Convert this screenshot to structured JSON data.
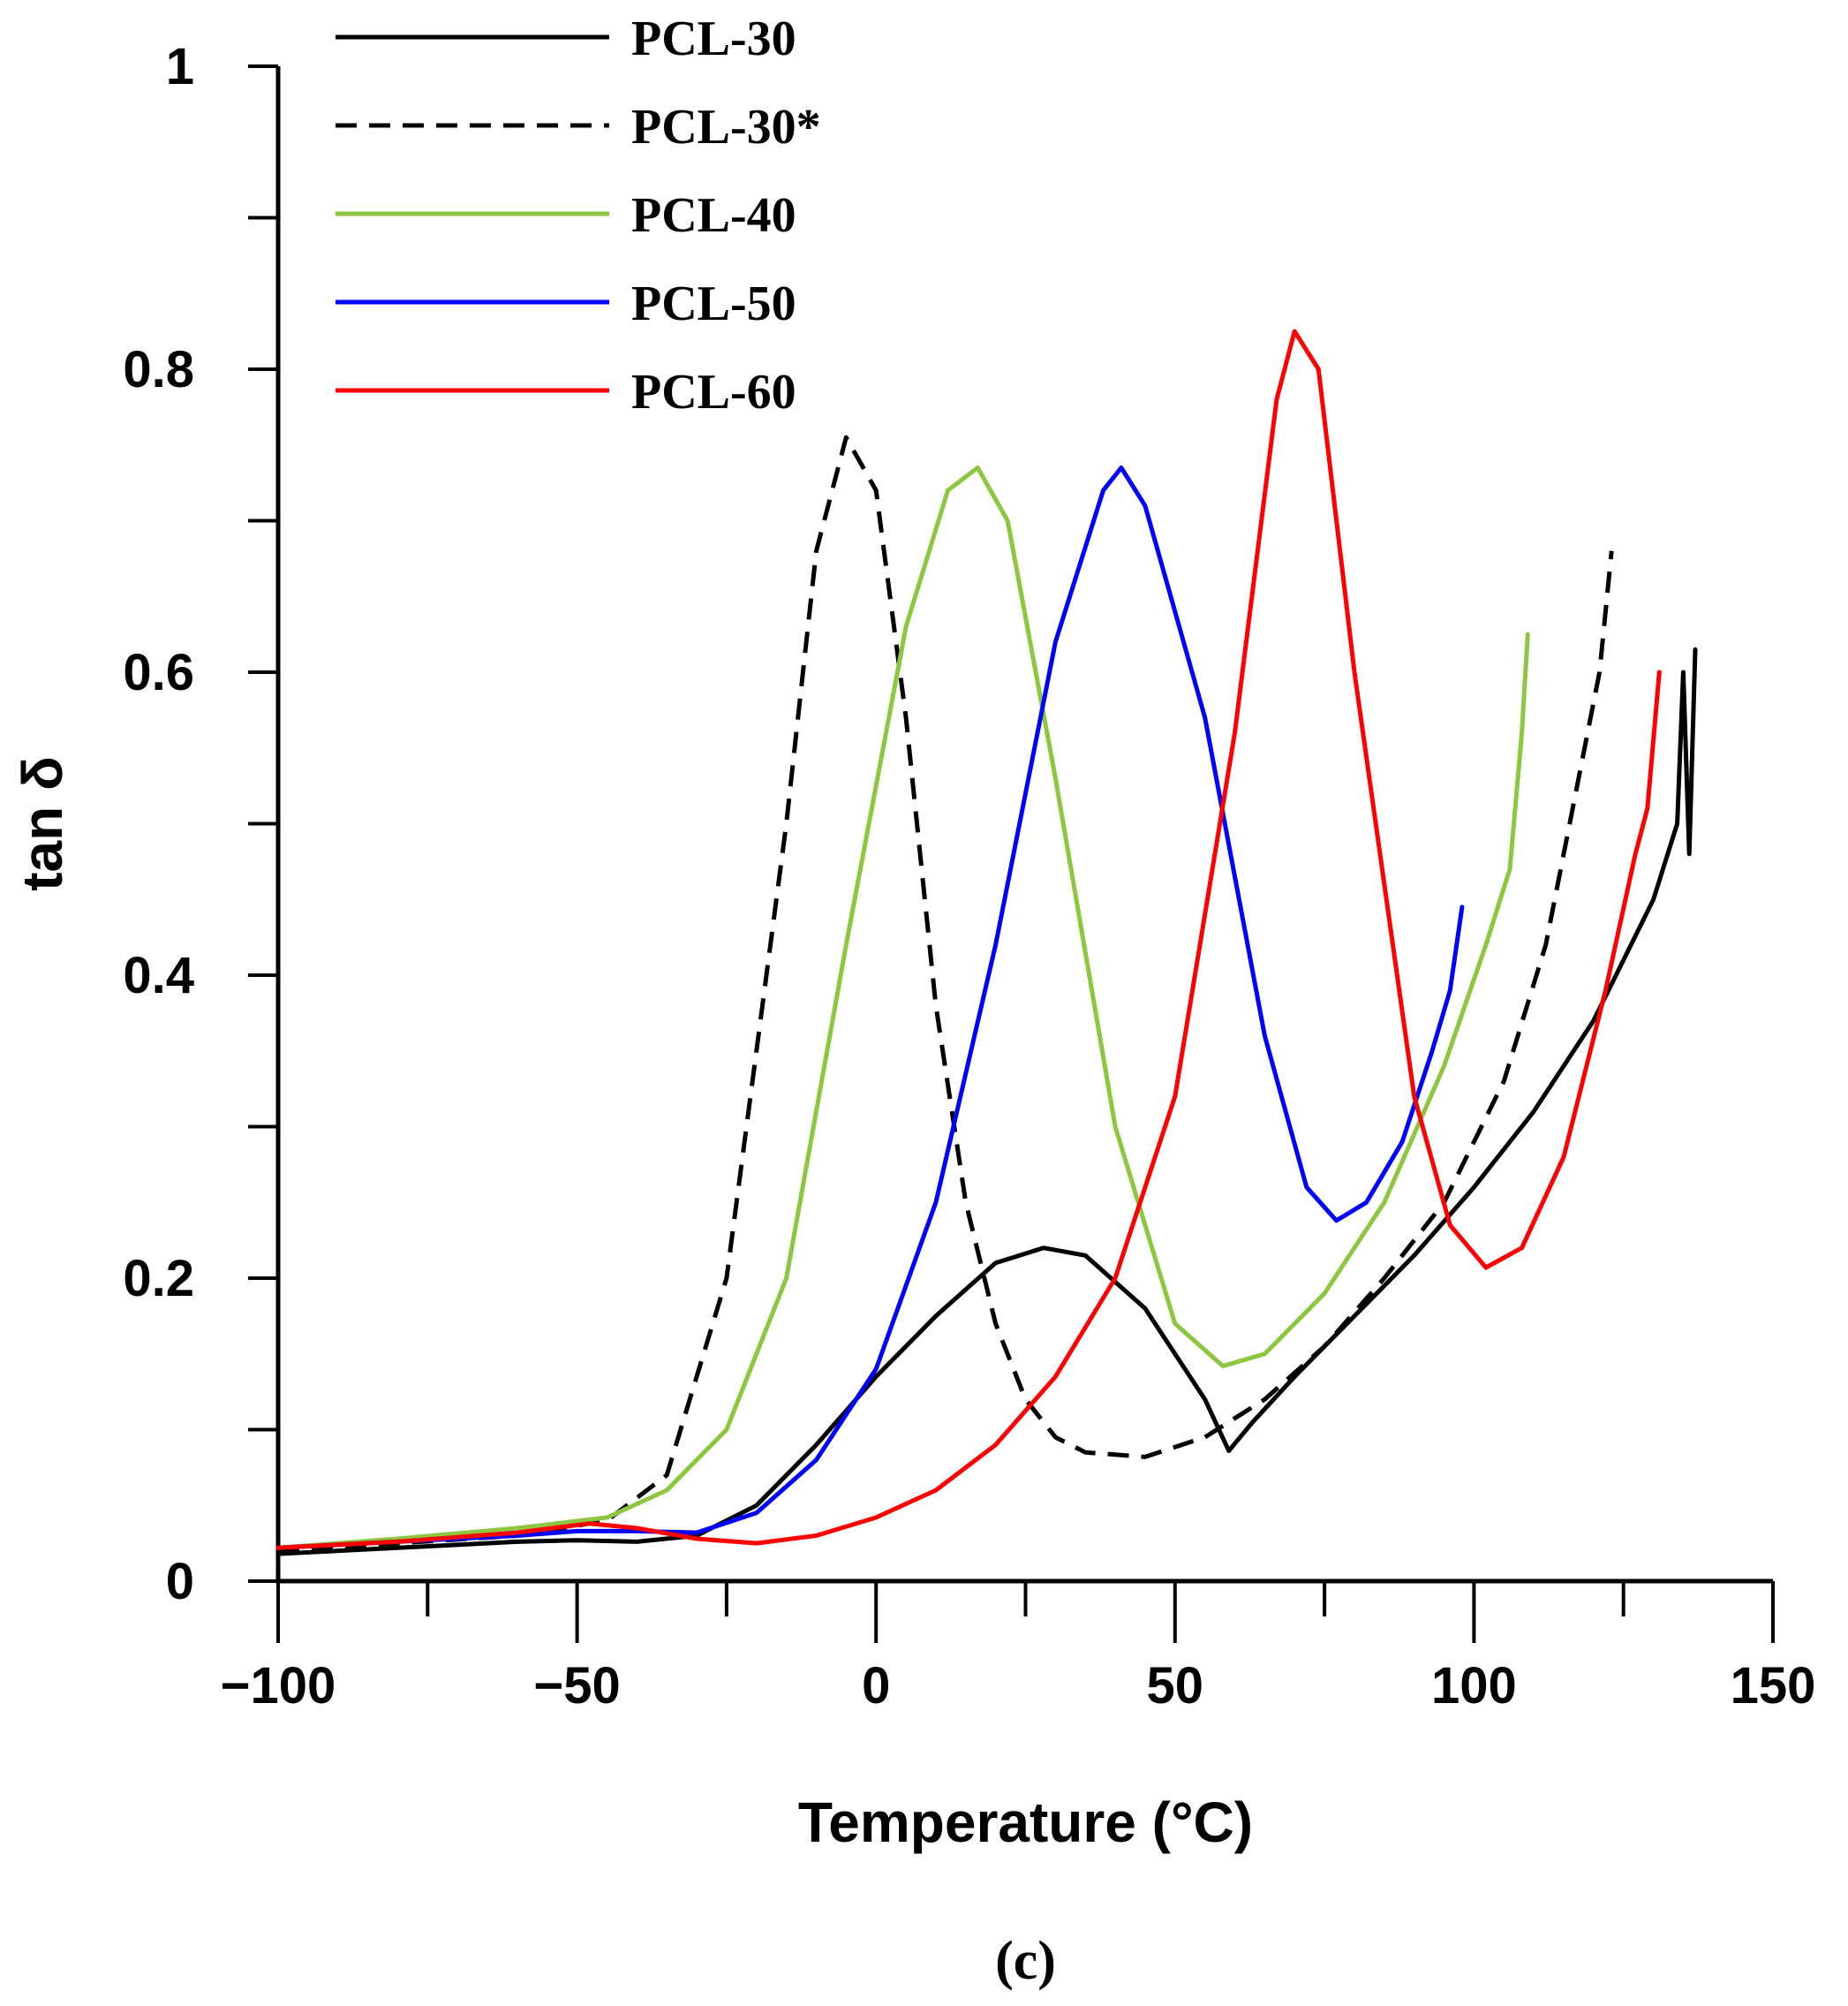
{
  "chart_data": {
    "type": "line",
    "title": "",
    "xlabel": "Temperature (°C)",
    "ylabel": "tan δ",
    "caption": "(c)",
    "xlim": [
      -100,
      150
    ],
    "ylim": [
      0,
      1
    ],
    "x_ticks": [
      -100,
      -50,
      0,
      50,
      100,
      150
    ],
    "x_tick_labels": [
      "−100",
      "−50",
      "0",
      "50",
      "100",
      "150"
    ],
    "y_ticks": [
      0,
      0.2,
      0.4,
      0.6,
      0.8,
      1
    ],
    "y_tick_labels": [
      "0",
      "0.2",
      "0.4",
      "0.6",
      "0.8",
      "1"
    ],
    "grid": false,
    "legend_position": "top-left",
    "series": [
      {
        "name": "PCL-30",
        "color": "#000000",
        "dashed": false,
        "x": [
          -100,
          -80,
          -60,
          -50,
          -40,
          -30,
          -20,
          -10,
          0,
          10,
          20,
          28,
          35,
          45,
          55,
          59,
          63,
          70,
          80,
          90,
          100,
          110,
          120,
          130,
          134,
          135,
          136,
          137
        ],
        "y": [
          0.018,
          0.022,
          0.026,
          0.027,
          0.026,
          0.03,
          0.05,
          0.09,
          0.135,
          0.175,
          0.21,
          0.22,
          0.215,
          0.18,
          0.12,
          0.086,
          0.105,
          0.135,
          0.175,
          0.215,
          0.26,
          0.31,
          0.37,
          0.45,
          0.5,
          0.6,
          0.48,
          0.615
        ]
      },
      {
        "name": "PCL-30*",
        "color": "#000000",
        "dashed": true,
        "x": [
          -100,
          -80,
          -60,
          -45,
          -35,
          -25,
          -15,
          -10,
          -5,
          0,
          5,
          10,
          15,
          20,
          25,
          30,
          35,
          45,
          55,
          65,
          75,
          85,
          95,
          105,
          112,
          118,
          121,
          123
        ],
        "y": [
          0.02,
          0.025,
          0.03,
          0.04,
          0.07,
          0.2,
          0.5,
          0.68,
          0.755,
          0.72,
          0.57,
          0.38,
          0.25,
          0.17,
          0.12,
          0.095,
          0.085,
          0.082,
          0.095,
          0.12,
          0.155,
          0.2,
          0.25,
          0.33,
          0.42,
          0.54,
          0.6,
          0.68
        ]
      },
      {
        "name": "PCL-40",
        "color": "#8dc63f",
        "dashed": false,
        "x": [
          -100,
          -80,
          -60,
          -45,
          -35,
          -25,
          -15,
          -5,
          5,
          12,
          17,
          22,
          30,
          40,
          50,
          58,
          65,
          75,
          85,
          95,
          102,
          106,
          108,
          109
        ],
        "y": [
          0.022,
          0.028,
          0.035,
          0.042,
          0.06,
          0.1,
          0.2,
          0.42,
          0.63,
          0.72,
          0.735,
          0.7,
          0.53,
          0.3,
          0.17,
          0.142,
          0.15,
          0.19,
          0.25,
          0.34,
          0.42,
          0.47,
          0.56,
          0.625
        ]
      },
      {
        "name": "PCL-50",
        "color": "#0000ff",
        "dashed": false,
        "x": [
          -100,
          -80,
          -60,
          -50,
          -40,
          -30,
          -20,
          -10,
          0,
          10,
          20,
          30,
          38,
          41,
          45,
          55,
          65,
          72,
          77,
          82,
          88,
          93,
          96,
          98
        ],
        "y": [
          0.022,
          0.026,
          0.03,
          0.033,
          0.033,
          0.032,
          0.045,
          0.08,
          0.14,
          0.25,
          0.42,
          0.62,
          0.72,
          0.735,
          0.71,
          0.57,
          0.36,
          0.26,
          0.238,
          0.25,
          0.29,
          0.35,
          0.39,
          0.445
        ]
      },
      {
        "name": "PCL-60",
        "color": "#ff0000",
        "dashed": false,
        "x": [
          -100,
          -80,
          -60,
          -48,
          -40,
          -30,
          -20,
          -10,
          0,
          10,
          20,
          30,
          40,
          50,
          60,
          67,
          70,
          74,
          80,
          90,
          96,
          102,
          108,
          115,
          122,
          127,
          129,
          131
        ],
        "y": [
          0.022,
          0.026,
          0.032,
          0.038,
          0.035,
          0.028,
          0.025,
          0.03,
          0.042,
          0.06,
          0.09,
          0.135,
          0.2,
          0.32,
          0.56,
          0.78,
          0.825,
          0.8,
          0.6,
          0.32,
          0.235,
          0.207,
          0.22,
          0.28,
          0.39,
          0.48,
          0.51,
          0.6
        ]
      }
    ]
  }
}
